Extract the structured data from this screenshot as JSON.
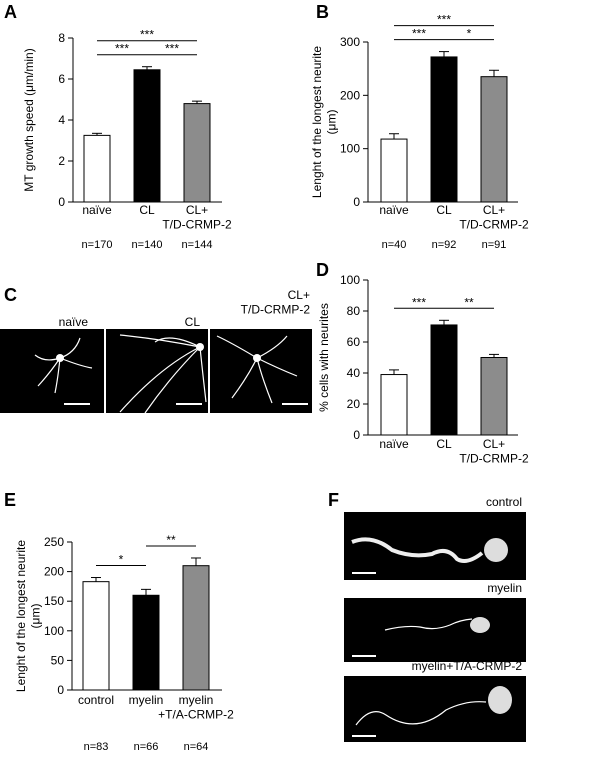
{
  "chart_data": [
    {
      "type": "bar",
      "panel_label": "A",
      "ylabel": "MT growth speed (μm/min)",
      "categories": [
        "naïve",
        "CL",
        "CL+\nT/D-CRMP-2"
      ],
      "values": [
        3.25,
        6.45,
        4.8
      ],
      "errors": [
        0.1,
        0.15,
        0.12
      ],
      "colors": [
        "#ffffff",
        "#000000",
        "#8c8c8c"
      ],
      "n_labels": [
        "n=170",
        "n=140",
        "n=144"
      ],
      "ylim": [
        0,
        8
      ],
      "yticks": [
        0,
        2,
        4,
        6,
        8
      ],
      "significance": [
        {
          "pair": [
            0,
            2
          ],
          "label": "***"
        },
        {
          "pair": [
            0,
            1
          ],
          "label": "***"
        },
        {
          "pair": [
            1,
            2
          ],
          "label": "***"
        }
      ]
    },
    {
      "type": "bar",
      "panel_label": "B",
      "ylabel": "Lenght of the longest neurite\n(μm)",
      "categories": [
        "naïve",
        "CL",
        "CL+\nT/D-CRMP-2"
      ],
      "values": [
        118,
        272,
        235
      ],
      "errors": [
        10,
        10,
        12
      ],
      "colors": [
        "#ffffff",
        "#000000",
        "#8c8c8c"
      ],
      "n_labels": [
        "n=40",
        "n=92",
        "n=91"
      ],
      "ylim": [
        0,
        300
      ],
      "yticks": [
        0,
        100,
        200,
        300
      ],
      "significance": [
        {
          "pair": [
            0,
            2
          ],
          "label": "***"
        },
        {
          "pair": [
            0,
            1
          ],
          "label": "***"
        },
        {
          "pair": [
            1,
            2
          ],
          "label": "*"
        }
      ]
    },
    {
      "type": "bar",
      "panel_label": "D",
      "ylabel": "% cells with neurites",
      "categories": [
        "naïve",
        "CL",
        "CL+\nT/D-CRMP-2"
      ],
      "values": [
        39,
        71,
        50
      ],
      "errors": [
        3,
        3,
        2
      ],
      "colors": [
        "#ffffff",
        "#000000",
        "#8c8c8c"
      ],
      "ylim": [
        0,
        100
      ],
      "yticks": [
        0,
        20,
        40,
        60,
        80,
        100
      ],
      "significance": [
        {
          "pair": [
            0,
            1
          ],
          "label": "***"
        },
        {
          "pair": [
            1,
            2
          ],
          "label": "**"
        }
      ]
    },
    {
      "type": "bar",
      "panel_label": "E",
      "ylabel": "Lenght of the longest neurite\n(μm)",
      "categories": [
        "control",
        "myelin",
        "myelin\n+T/A-CRMP-2"
      ],
      "values": [
        183,
        160,
        210
      ],
      "errors": [
        7,
        10,
        13
      ],
      "colors": [
        "#ffffff",
        "#000000",
        "#8c8c8c"
      ],
      "n_labels": [
        "n=83",
        "n=66",
        "n=64"
      ],
      "ylim": [
        0,
        250
      ],
      "yticks": [
        0,
        50,
        100,
        150,
        200,
        250
      ],
      "significance": [
        {
          "pair": [
            0,
            1
          ],
          "label": "*"
        },
        {
          "pair": [
            1,
            2
          ],
          "label": "**"
        }
      ]
    }
  ],
  "image_panels": {
    "C": {
      "panel_label": "C",
      "captions": [
        "naïve",
        "CL",
        "CL+\nT/D-CRMP-2"
      ]
    },
    "F": {
      "panel_label": "F",
      "captions": [
        "control",
        "myelin",
        "myelin+T/A-CRMP-2"
      ]
    }
  }
}
